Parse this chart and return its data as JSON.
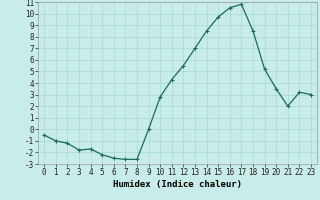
{
  "x": [
    0,
    1,
    2,
    3,
    4,
    5,
    6,
    7,
    8,
    9,
    10,
    11,
    12,
    13,
    14,
    15,
    16,
    17,
    18,
    19,
    20,
    21,
    22,
    23
  ],
  "y": [
    -0.5,
    -1.0,
    -1.2,
    -1.8,
    -1.7,
    -2.2,
    -2.5,
    -2.6,
    -2.6,
    0.0,
    2.8,
    4.3,
    5.5,
    7.0,
    8.5,
    9.7,
    10.5,
    10.8,
    8.5,
    5.2,
    3.5,
    2.0,
    3.2,
    3.0
  ],
  "line_color": "#1a6b5a",
  "marker": "+",
  "bg_color": "#c8ece8",
  "grid_color": "#a8d8d0",
  "xlabel": "Humidex (Indice chaleur)",
  "ylim": [
    -3,
    11
  ],
  "xlim": [
    -0.5,
    23.5
  ],
  "yticks": [
    -3,
    -2,
    -1,
    0,
    1,
    2,
    3,
    4,
    5,
    6,
    7,
    8,
    9,
    10,
    11
  ],
  "xticks": [
    0,
    1,
    2,
    3,
    4,
    5,
    6,
    7,
    8,
    9,
    10,
    11,
    12,
    13,
    14,
    15,
    16,
    17,
    18,
    19,
    20,
    21,
    22,
    23
  ],
  "tick_fontsize": 5.5,
  "xlabel_fontsize": 6.5,
  "linewidth": 0.9,
  "markersize": 2.5,
  "markeredgewidth": 0.8
}
